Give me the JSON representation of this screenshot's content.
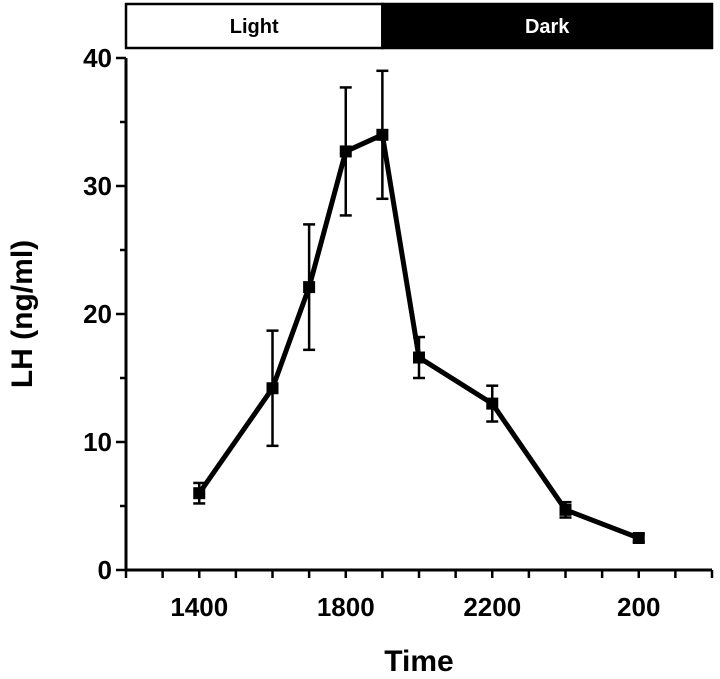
{
  "chart_data": {
    "type": "line",
    "xlabel": "Time",
    "ylabel": "LH (ng/ml)",
    "ylim": [
      0,
      40
    ],
    "yticks": [
      "0",
      "10",
      "20",
      "30",
      "40"
    ],
    "xticks": [
      {
        "x": 2,
        "label": "1400"
      },
      {
        "x": 6,
        "label": "1800"
      },
      {
        "x": 10,
        "label": "2200"
      },
      {
        "x": 14,
        "label": "200"
      }
    ],
    "xlim": [
      0,
      16
    ],
    "grid": false,
    "lighting": {
      "light_label": "Light",
      "dark_label": "Dark",
      "light_range": [
        0,
        7
      ],
      "dark_range": [
        7,
        16
      ]
    },
    "series": [
      {
        "x": [
          2,
          4,
          5,
          6,
          7,
          8,
          10,
          12,
          14
        ],
        "y": [
          6.0,
          14.2,
          22.1,
          32.7,
          34.0,
          16.6,
          13.0,
          4.7,
          2.5
        ],
        "err": [
          0.8,
          4.5,
          4.9,
          5.0,
          5.0,
          1.6,
          1.4,
          0.6,
          0.3
        ]
      }
    ],
    "colors": {
      "line": "#000000",
      "light_band": "#ffffff",
      "dark_band": "#000000"
    }
  }
}
